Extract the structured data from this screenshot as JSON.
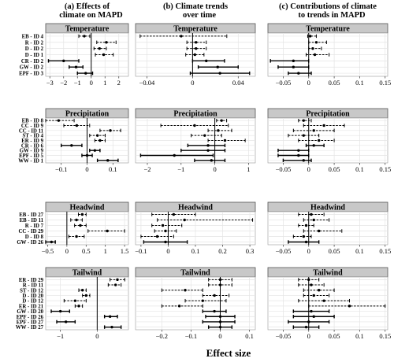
{
  "figure": {
    "xlabel": "Effect size"
  },
  "columns": [
    {
      "letter": "(a)",
      "title_lines": [
        "Effects of",
        "climate on MAPD"
      ]
    },
    {
      "letter": "(b)",
      "title_lines": [
        "Climate trends",
        "over time"
      ]
    },
    {
      "letter": "(c)",
      "title_lines": [
        "Contributions of climate",
        "to trends in MAPD"
      ]
    }
  ],
  "colors": {
    "strip_fill": "#c8c8c8",
    "strip_border": "#555555",
    "grid": "#e4e4e4",
    "mark": "#000000",
    "panel_border": "#999999"
  },
  "chart_data": [
    {
      "type": "forest",
      "column": "(a)",
      "row": "Temperature",
      "title": "Temperature",
      "xlim": [
        -3.3,
        2.7
      ],
      "xticks": [
        -3,
        -2,
        -1,
        0,
        1,
        2
      ],
      "zero_line": 0,
      "categories": [
        "EB - ID 4",
        "R - ID 2",
        "D - ID 2",
        "D - ID 1",
        "CR - ID 2",
        "GW - ID 2",
        "EPF - ID 3"
      ],
      "series": [
        {
          "estimates": [
            -0.5,
            1.1,
            0.6,
            0.9,
            -2.0,
            -1.1,
            -0.4
          ],
          "lower": [
            -0.9,
            0.4,
            0.2,
            0.3,
            -3.1,
            -1.6,
            -1.0
          ],
          "upper": [
            -0.1,
            1.8,
            1.1,
            1.6,
            -0.9,
            -0.6,
            0.1
          ],
          "significant": [
            false,
            false,
            false,
            false,
            true,
            true,
            true
          ]
        }
      ]
    },
    {
      "type": "forest",
      "column": "(b)",
      "row": "Temperature",
      "title": "Temperature",
      "xlim": [
        -0.05,
        0.055
      ],
      "xticks": [
        -0.04,
        0.0,
        0.04
      ],
      "zero_line": 0,
      "categories": [
        "EB - ID 4",
        "R - ID 2",
        "D - ID 2",
        "D - ID 1",
        "CR - ID 2",
        "GW - ID 2",
        "EPF - ID 3"
      ],
      "series": [
        {
          "estimates": [
            -0.01,
            0.003,
            0.003,
            0.002,
            0.012,
            0.022,
            0.024
          ],
          "lower": [
            -0.046,
            -0.005,
            -0.005,
            -0.006,
            0.0,
            0.005,
            -0.002
          ],
          "upper": [
            0.03,
            0.012,
            0.012,
            0.01,
            0.028,
            0.04,
            0.05
          ],
          "significant": [
            false,
            false,
            false,
            false,
            true,
            true,
            true
          ]
        }
      ]
    },
    {
      "type": "forest",
      "column": "(c)",
      "row": "Temperature",
      "title": "Temperature",
      "xlim": [
        -0.08,
        0.155
      ],
      "xticks": [
        -0.05,
        0.0,
        0.05,
        0.1,
        0.15
      ],
      "zero_line": 0,
      "categories": [
        "EB - ID 4",
        "R - ID 2",
        "D - ID 2",
        "D - ID 1",
        "CR - ID 2",
        "GW - ID 2",
        "EPF - ID 3"
      ],
      "series": [
        {
          "estimates": [
            0.003,
            0.015,
            0.008,
            0.012,
            -0.03,
            -0.03,
            -0.02
          ],
          "lower": [
            -0.002,
            0.0,
            0.0,
            -0.005,
            -0.075,
            -0.06,
            -0.04
          ],
          "upper": [
            0.015,
            0.035,
            0.025,
            0.04,
            0.0,
            0.0,
            0.005
          ],
          "significant": [
            false,
            false,
            false,
            false,
            true,
            true,
            true
          ]
        }
      ]
    },
    {
      "type": "forest",
      "column": "(a)",
      "row": "Precipitation",
      "title": "Precipitation",
      "xlim": [
        -0.16,
        0.16
      ],
      "xticks": [
        -0.1,
        0.0,
        0.1
      ],
      "zero_line": 0,
      "categories": [
        "EB - ID 8",
        "CC - ID 9",
        "CC - ID 11",
        "ST - ID 4",
        "ER - ID 9",
        "CR - ID 6",
        "GW - ID 9",
        "EPF - ID 5",
        "WW - ID 1"
      ],
      "series": [
        {
          "estimates": [
            -0.11,
            -0.04,
            0.09,
            0.04,
            0.05,
            -0.06,
            0.03,
            0.0,
            0.08
          ],
          "lower": [
            -0.16,
            -0.09,
            0.05,
            0.01,
            0.03,
            -0.1,
            0.01,
            -0.02,
            0.04
          ],
          "upper": [
            -0.05,
            0.01,
            0.13,
            0.07,
            0.07,
            -0.02,
            0.05,
            0.02,
            0.12
          ],
          "significant": [
            false,
            false,
            false,
            false,
            false,
            true,
            true,
            true,
            true
          ]
        }
      ]
    },
    {
      "type": "forest",
      "column": "(b)",
      "row": "Precipitation",
      "title": "Precipitation",
      "xlim": [
        -2.35,
        1.2
      ],
      "xticks": [
        -2,
        -1,
        0,
        1
      ],
      "zero_line": 0,
      "categories": [
        "EB - ID 8",
        "CC - ID 9",
        "CC - ID 11",
        "ST - ID 4",
        "ER - ID 9",
        "CR - ID 6",
        "GW - ID 9",
        "EPF - ID 5",
        "WW - ID 1"
      ],
      "series": [
        {
          "estimates": [
            0.2,
            -0.6,
            0.1,
            -0.3,
            0.3,
            -0.2,
            -0.2,
            -1.2,
            -0.1
          ],
          "lower": [
            0.05,
            -1.6,
            -0.2,
            -0.7,
            -0.2,
            -0.8,
            -1.0,
            -2.2,
            -0.6
          ],
          "upper": [
            0.35,
            0.4,
            0.5,
            0.2,
            0.9,
            0.3,
            0.3,
            -0.05,
            0.3
          ],
          "significant": [
            false,
            false,
            false,
            false,
            false,
            true,
            true,
            true,
            true
          ]
        }
      ]
    },
    {
      "type": "forest",
      "column": "(c)",
      "row": "Precipitation",
      "title": "Precipitation",
      "xlim": [
        -0.08,
        0.155
      ],
      "xticks": [
        -0.05,
        0.0,
        0.05,
        0.1,
        0.15
      ],
      "zero_line": 0,
      "categories": [
        "EB - ID 8",
        "CC - ID 9",
        "CC - ID 11",
        "ST - ID 4",
        "ER - ID 9",
        "CR - ID 6",
        "GW - ID 9",
        "EPF - ID 5",
        "WW - ID 1"
      ],
      "series": [
        {
          "estimates": [
            -0.01,
            0.03,
            0.01,
            -0.01,
            0.02,
            0.01,
            -0.02,
            -0.02,
            -0.01
          ],
          "lower": [
            -0.02,
            -0.01,
            -0.03,
            -0.04,
            -0.02,
            -0.005,
            -0.06,
            -0.06,
            -0.05
          ],
          "upper": [
            0.005,
            0.07,
            0.05,
            0.02,
            0.05,
            0.03,
            0.0,
            0.0,
            0.005
          ],
          "significant": [
            false,
            false,
            false,
            false,
            false,
            true,
            true,
            true,
            true
          ]
        }
      ]
    },
    {
      "type": "forest",
      "column": "(a)",
      "row": "Headwind",
      "title": "Headwind",
      "xlim": [
        -0.55,
        1.6
      ],
      "xticks": [
        -0.5,
        0.0,
        0.5,
        1.0,
        1.5
      ],
      "zero_line": 0,
      "categories": [
        "EB - ID 27",
        "EB - ID 11",
        "R - ID 7",
        "CC - ID 29",
        "D - ID 8",
        "GW - ID 26"
      ],
      "series": [
        {
          "estimates": [
            0.4,
            0.25,
            0.35,
            1.05,
            0.25,
            -0.4
          ],
          "lower": [
            0.3,
            0.1,
            0.2,
            0.55,
            0.05,
            -0.55
          ],
          "upper": [
            0.5,
            0.4,
            0.5,
            1.5,
            0.45,
            -0.3
          ],
          "significant": [
            false,
            false,
            false,
            false,
            false,
            true
          ]
        }
      ]
    },
    {
      "type": "forest",
      "column": "(b)",
      "row": "Headwind",
      "title": "Headwind",
      "xlim": [
        -0.12,
        0.32
      ],
      "xticks": [
        -0.1,
        0.0,
        0.1,
        0.2,
        0.3
      ],
      "zero_line": 0,
      "categories": [
        "EB - ID 27",
        "EB - ID 11",
        "R - ID 7",
        "CC - ID 29",
        "D - ID 8",
        "GW - ID 26"
      ],
      "series": [
        {
          "estimates": [
            0.02,
            0.06,
            -0.02,
            -0.01,
            -0.04,
            -0.01
          ],
          "lower": [
            -0.06,
            -0.04,
            -0.06,
            -0.05,
            -0.1,
            -0.09
          ],
          "upper": [
            0.1,
            0.31,
            0.05,
            0.03,
            0.02,
            0.07
          ],
          "significant": [
            false,
            false,
            false,
            false,
            false,
            true
          ]
        }
      ]
    },
    {
      "type": "forest",
      "column": "(c)",
      "row": "Headwind",
      "title": "Headwind",
      "xlim": [
        -0.08,
        0.155
      ],
      "xticks": [
        -0.05,
        0.0,
        0.05,
        0.1,
        0.15
      ],
      "zero_line": 0,
      "categories": [
        "EB - ID 27",
        "EB - ID 11",
        "R - ID 7",
        "CC - ID 29",
        "D - ID 8",
        "GW - ID 26"
      ],
      "series": [
        {
          "estimates": [
            0.005,
            0.01,
            -0.005,
            0.02,
            -0.01,
            -0.005
          ],
          "lower": [
            -0.02,
            -0.01,
            -0.02,
            -0.01,
            -0.03,
            -0.04
          ],
          "upper": [
            0.03,
            0.04,
            0.01,
            0.065,
            0.005,
            0.02
          ],
          "significant": [
            false,
            false,
            false,
            false,
            false,
            true
          ]
        }
      ]
    },
    {
      "type": "forest",
      "column": "(a)",
      "row": "Tailwind",
      "title": "Tailwind",
      "xlim": [
        -1.4,
        0.85
      ],
      "xticks": [
        -1,
        0
      ],
      "zero_line": 0,
      "categories": [
        "ER - ID 29",
        "R - ID 11",
        "ST - ID 12",
        "D - ID 20",
        "D - ID 12",
        "ER - ID 21",
        "GW - ID 20",
        "EPF - ID 26",
        "EPF - ID 27",
        "WW - ID 27"
      ],
      "series": [
        {
          "estimates": [
            0.55,
            0.5,
            -0.4,
            -0.3,
            -0.6,
            -0.5,
            -1.0,
            0.35,
            -0.85,
            0.4
          ],
          "lower": [
            0.35,
            0.3,
            -0.5,
            -0.4,
            -0.9,
            -0.6,
            -1.25,
            0.2,
            -1.1,
            0.2
          ],
          "upper": [
            0.75,
            0.65,
            -0.3,
            -0.2,
            -0.3,
            -0.4,
            -0.75,
            0.55,
            -0.6,
            0.65
          ],
          "significant": [
            false,
            false,
            false,
            false,
            false,
            false,
            true,
            true,
            true,
            true
          ]
        }
      ]
    },
    {
      "type": "forest",
      "column": "(b)",
      "row": "Tailwind",
      "title": "Tailwind",
      "xlim": [
        -0.29,
        0.12
      ],
      "xticks": [
        -0.2,
        -0.1,
        0.0,
        0.1
      ],
      "zero_line": 0,
      "categories": [
        "ER - ID 29",
        "R - ID 11",
        "ST - ID 12",
        "D - ID 20",
        "D - ID 12",
        "ER - ID 21",
        "GW - ID 20",
        "EPF - ID 26",
        "EPF - ID 27",
        "WW - ID 27"
      ],
      "series": [
        {
          "estimates": [
            0.0,
            0.0,
            -0.12,
            -0.02,
            -0.06,
            -0.14,
            -0.02,
            0.0,
            0.0,
            0.0
          ],
          "lower": [
            -0.04,
            -0.04,
            -0.2,
            -0.06,
            -0.12,
            -0.2,
            -0.06,
            -0.05,
            -0.06,
            -0.04
          ],
          "upper": [
            0.04,
            0.04,
            -0.06,
            0.03,
            0.02,
            -0.06,
            0.02,
            0.05,
            0.05,
            0.04
          ],
          "significant": [
            false,
            false,
            false,
            false,
            false,
            false,
            true,
            true,
            true,
            true
          ]
        }
      ]
    },
    {
      "type": "forest",
      "column": "(c)",
      "row": "Tailwind",
      "title": "Tailwind",
      "xlim": [
        -0.08,
        0.155
      ],
      "xticks": [
        -0.05,
        0.0,
        0.05,
        0.1,
        0.15
      ],
      "zero_line": 0,
      "categories": [
        "ER - ID 29",
        "R - ID 11",
        "ST - ID 12",
        "D - ID 20",
        "D - ID 12",
        "ER - ID 21",
        "GW - ID 20",
        "EPF - ID 26",
        "EPF - ID 27",
        "WW - ID 27"
      ],
      "series": [
        {
          "estimates": [
            0.0,
            0.005,
            0.02,
            0.01,
            0.03,
            0.08,
            0.005,
            0.01,
            0.0,
            -0.005
          ],
          "lower": [
            -0.02,
            -0.02,
            -0.01,
            -0.01,
            -0.02,
            0.0,
            -0.03,
            -0.03,
            -0.04,
            -0.03
          ],
          "upper": [
            0.02,
            0.03,
            0.05,
            0.04,
            0.08,
            0.15,
            0.04,
            0.05,
            0.04,
            0.02
          ],
          "significant": [
            false,
            false,
            false,
            false,
            false,
            false,
            true,
            true,
            true,
            true
          ]
        }
      ]
    }
  ]
}
